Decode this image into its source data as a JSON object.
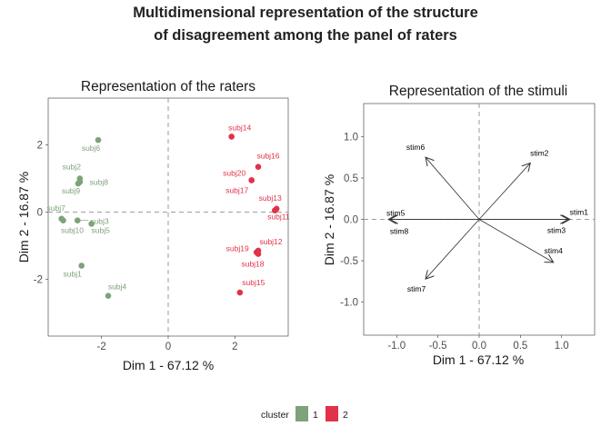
{
  "figure": {
    "title_line1": "Multidimensional representation of the structure",
    "title_line2": "of disagreement among the panel of raters"
  },
  "colors": {
    "cluster1": "#7ea27a",
    "cluster2": "#e1324a",
    "dashed": "#7f7f7f",
    "tick": "#333333"
  },
  "legend": {
    "title": "cluster",
    "items": [
      {
        "label": "1",
        "color": "#7ea27a"
      },
      {
        "label": "2",
        "color": "#e1324a"
      }
    ]
  },
  "chart_data": [
    {
      "type": "scatter",
      "title": "Representation of the raters",
      "xlabel": "Dim 1 - 67.12 %",
      "ylabel": "Dim 2 - 16.87 %",
      "xlim": [
        -3.6,
        3.6
      ],
      "ylim": [
        -3.7,
        3.4
      ],
      "xticks": [
        -2,
        0,
        2
      ],
      "yticks": [
        -2,
        0,
        2
      ],
      "xtick_labels": [
        "-2",
        "0",
        "2"
      ],
      "ytick_labels": [
        "-2",
        "0",
        "2"
      ],
      "grid": false,
      "points": [
        {
          "label": "subj1",
          "x": -2.6,
          "y": -1.6,
          "cluster": "1"
        },
        {
          "label": "subj2",
          "x": -2.65,
          "y": 1.0,
          "cluster": "1"
        },
        {
          "label": "subj3",
          "x": -2.72,
          "y": -0.25,
          "cluster": "1"
        },
        {
          "label": "subj4",
          "x": -1.8,
          "y": -2.5,
          "cluster": "1"
        },
        {
          "label": "subj5",
          "x": -2.3,
          "y": -0.35,
          "cluster": "1"
        },
        {
          "label": "subj6",
          "x": -2.1,
          "y": 2.15,
          "cluster": "1"
        },
        {
          "label": "subj7",
          "x": -3.2,
          "y": -0.2,
          "cluster": "1"
        },
        {
          "label": "subj8",
          "x": -2.65,
          "y": 0.9,
          "cluster": "1"
        },
        {
          "label": "subj9",
          "x": -2.7,
          "y": 0.85,
          "cluster": "1"
        },
        {
          "label": "subj10",
          "x": -3.15,
          "y": -0.25,
          "cluster": "1"
        },
        {
          "label": "subj11",
          "x": 3.2,
          "y": 0.05,
          "cluster": "2"
        },
        {
          "label": "subj12",
          "x": 2.7,
          "y": -1.15,
          "cluster": "2"
        },
        {
          "label": "subj13",
          "x": 3.25,
          "y": 0.1,
          "cluster": "2"
        },
        {
          "label": "subj14",
          "x": 1.9,
          "y": 2.25,
          "cluster": "2"
        },
        {
          "label": "subj15",
          "x": 2.15,
          "y": -2.4,
          "cluster": "2"
        },
        {
          "label": "subj16",
          "x": 2.7,
          "y": 1.35,
          "cluster": "2"
        },
        {
          "label": "subj17",
          "x": 2.5,
          "y": 0.95,
          "cluster": "2"
        },
        {
          "label": "subj18",
          "x": 2.7,
          "y": -1.25,
          "cluster": "2"
        },
        {
          "label": "subj19",
          "x": 2.65,
          "y": -1.2,
          "cluster": "2"
        },
        {
          "label": "subj20",
          "x": 2.5,
          "y": 0.95,
          "cluster": "2"
        }
      ]
    },
    {
      "type": "scatter",
      "title": "Representation of the stimuli",
      "xlabel": "Dim 1 - 67.12 %",
      "ylabel": "Dim 2 - 16.87 %",
      "xlim": [
        -1.4,
        1.4
      ],
      "ylim": [
        -1.4,
        1.4
      ],
      "xticks": [
        -1.0,
        -0.5,
        0.0,
        0.5,
        1.0
      ],
      "yticks": [
        -1.0,
        -0.5,
        0.0,
        0.5,
        1.0
      ],
      "xtick_labels": [
        "-1.0",
        "-0.5",
        "0.0",
        "0.5",
        "1.0"
      ],
      "ytick_labels": [
        "-1.0",
        "-0.5",
        "0.0",
        "0.5",
        "1.0"
      ],
      "grid": false,
      "arrows": [
        {
          "label": "stim1",
          "x": 1.1,
          "y": 0.0
        },
        {
          "label": "stim2",
          "x": 0.62,
          "y": 0.68
        },
        {
          "label": "stim3",
          "x": 1.08,
          "y": 0.0
        },
        {
          "label": "stim4",
          "x": 0.9,
          "y": -0.52
        },
        {
          "label": "stim5",
          "x": -1.1,
          "y": 0.0
        },
        {
          "label": "stim6",
          "x": -0.65,
          "y": 0.75
        },
        {
          "label": "stim7",
          "x": -0.65,
          "y": -0.72
        },
        {
          "label": "stim8",
          "x": -1.08,
          "y": 0.0
        }
      ]
    }
  ]
}
